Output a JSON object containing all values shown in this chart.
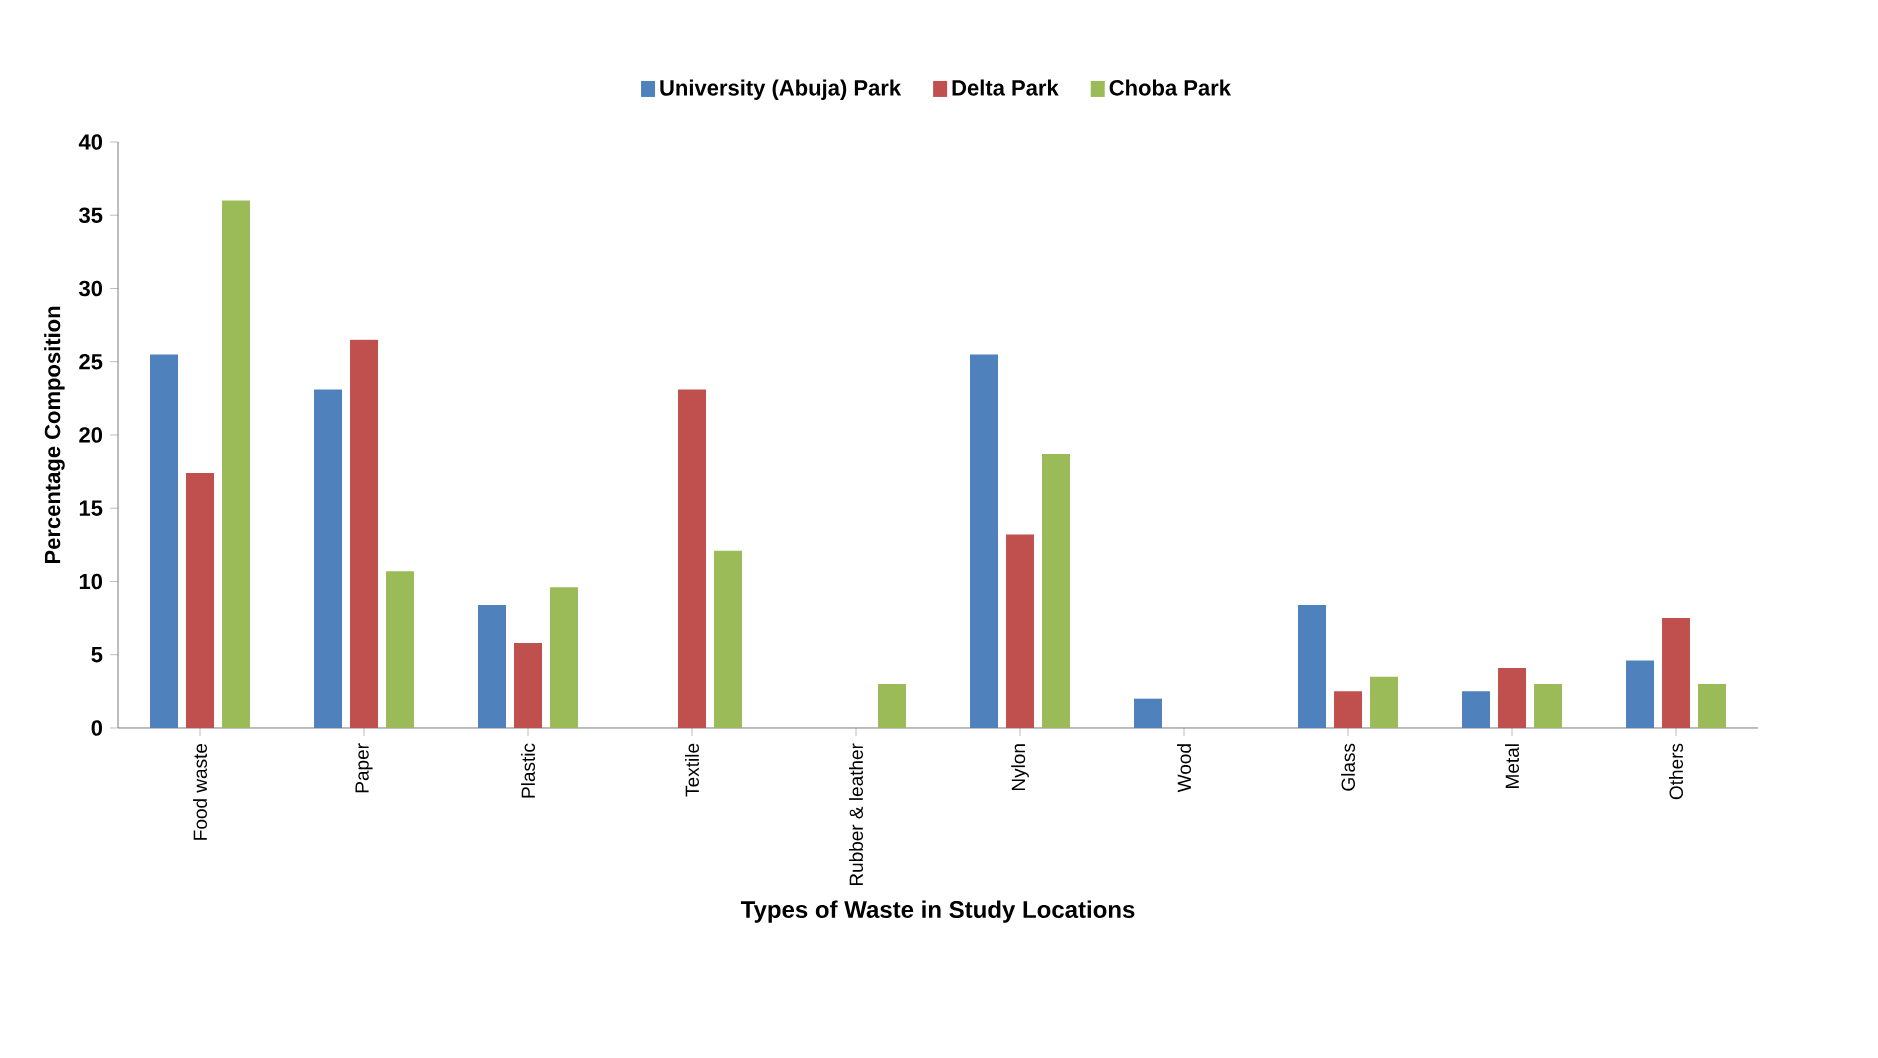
{
  "chart_data": {
    "type": "bar",
    "xlabel": "Types of Waste in Study Locations",
    "ylabel": "Percentage Composition",
    "categories": [
      "Food waste",
      "Paper",
      "Plastic",
      "Textile",
      "Rubber & leather",
      "Nylon",
      "Wood",
      "Glass",
      "Metal",
      "Others"
    ],
    "series": [
      {
        "name": "University (Abuja) Park",
        "color": "#4f81bd",
        "values": [
          25.5,
          23.1,
          8.4,
          null,
          null,
          25.5,
          2.0,
          8.4,
          2.5,
          4.6
        ]
      },
      {
        "name": "Delta Park",
        "color": "#c0504d",
        "values": [
          17.4,
          26.5,
          5.8,
          23.1,
          null,
          13.2,
          null,
          2.5,
          4.1,
          7.5
        ]
      },
      {
        "name": "Choba Park",
        "color": "#9bbb59",
        "values": [
          36.0,
          10.7,
          9.6,
          12.1,
          3.0,
          18.7,
          null,
          3.5,
          3.0,
          3.0
        ]
      }
    ],
    "ylim": [
      0,
      40
    ],
    "yticks": [
      0,
      5,
      10,
      15,
      20,
      25,
      30,
      35,
      40
    ],
    "legend": "top",
    "grid": false
  }
}
